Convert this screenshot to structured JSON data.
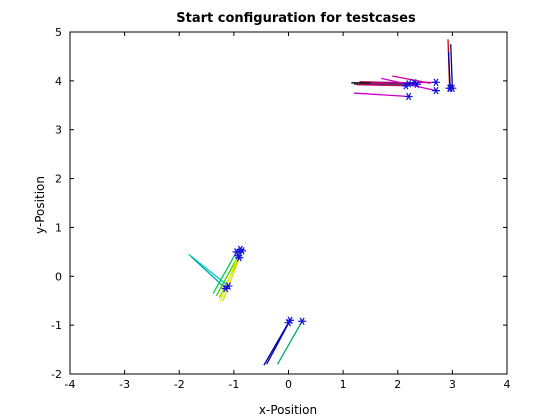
{
  "chart_data": {
    "type": "line",
    "title": "Start configuration for testcases",
    "xlabel": "x-Position",
    "ylabel": "y-Position",
    "xlim": [
      -4,
      4
    ],
    "ylim": [
      -2,
      5
    ],
    "xticks": [
      "-4",
      "-3",
      "-2",
      "-1",
      "0",
      "1",
      "2",
      "3",
      "4"
    ],
    "yticks": [
      "-2",
      "-1",
      "0",
      "1",
      "2",
      "3",
      "4",
      "5"
    ],
    "grid": false,
    "box": true,
    "marker_color": "#1010e0",
    "series": [
      {
        "color": "#cc0000",
        "points": [
          [
            2.92,
            4.85
          ],
          [
            2.95,
            3.85
          ]
        ]
      },
      {
        "color": "#00008b",
        "points": [
          [
            2.97,
            4.75
          ],
          [
            3.0,
            3.85
          ]
        ]
      },
      {
        "color": "#00008b",
        "points": [
          [
            2.93,
            4.6
          ],
          [
            2.96,
            3.85
          ]
        ]
      },
      {
        "color": "#000000",
        "points": [
          [
            1.15,
            3.96
          ],
          [
            2.2,
            3.94
          ]
        ]
      },
      {
        "color": "#333333",
        "points": [
          [
            1.2,
            3.93
          ],
          [
            2.35,
            3.93
          ]
        ]
      },
      {
        "color": "#990033",
        "points": [
          [
            1.3,
            3.98
          ],
          [
            2.3,
            3.96
          ]
        ]
      },
      {
        "color": "#cc0066",
        "points": [
          [
            1.25,
            3.92
          ],
          [
            2.15,
            3.9
          ]
        ]
      },
      {
        "color": "#cc00aa",
        "points": [
          [
            1.5,
            3.95
          ],
          [
            2.7,
            3.97
          ]
        ]
      },
      {
        "color": "#cc00cc",
        "points": [
          [
            1.2,
            3.75
          ],
          [
            2.2,
            3.68
          ]
        ]
      },
      {
        "color": "#cc00cc",
        "points": [
          [
            1.7,
            4.05
          ],
          [
            2.7,
            3.8
          ]
        ]
      },
      {
        "color": "#cc0099",
        "points": [
          [
            1.9,
            4.1
          ],
          [
            2.6,
            3.95
          ]
        ]
      },
      {
        "color": "#00cccc",
        "points": [
          [
            -1.83,
            0.45
          ],
          [
            -1.1,
            -0.2
          ]
        ]
      },
      {
        "color": "#00aaaa",
        "points": [
          [
            -1.78,
            0.4
          ],
          [
            -1.15,
            -0.25
          ]
        ]
      },
      {
        "color": "#00cc44",
        "points": [
          [
            -1.38,
            -0.35
          ],
          [
            -0.95,
            0.5
          ]
        ]
      },
      {
        "color": "#44cc00",
        "points": [
          [
            -1.32,
            -0.4
          ],
          [
            -0.92,
            0.42
          ]
        ]
      },
      {
        "color": "#88dd00",
        "points": [
          [
            -1.27,
            -0.45
          ],
          [
            -0.9,
            0.38
          ]
        ]
      },
      {
        "color": "#eeee00",
        "points": [
          [
            -1.25,
            -0.52
          ],
          [
            -0.88,
            0.55
          ]
        ]
      },
      {
        "color": "#dddd00",
        "points": [
          [
            -1.2,
            -0.5
          ],
          [
            -0.85,
            0.52
          ]
        ]
      },
      {
        "color": "#00008b",
        "points": [
          [
            -0.45,
            -1.82
          ],
          [
            0.0,
            -0.95
          ]
        ]
      },
      {
        "color": "#0000cc",
        "points": [
          [
            -0.4,
            -1.8
          ],
          [
            0.03,
            -0.9
          ]
        ]
      },
      {
        "color": "#00aa66",
        "points": [
          [
            -0.2,
            -1.8
          ],
          [
            0.25,
            -0.92
          ]
        ]
      }
    ],
    "markers": [
      [
        2.95,
        3.85
      ],
      [
        3.0,
        3.85
      ],
      [
        2.96,
        3.85
      ],
      [
        2.2,
        3.94
      ],
      [
        2.35,
        3.93
      ],
      [
        2.3,
        3.96
      ],
      [
        2.15,
        3.9
      ],
      [
        2.7,
        3.97
      ],
      [
        2.2,
        3.68
      ],
      [
        2.7,
        3.8
      ],
      [
        -1.1,
        -0.2
      ],
      [
        -1.15,
        -0.25
      ],
      [
        -0.95,
        0.5
      ],
      [
        -0.92,
        0.42
      ],
      [
        -0.9,
        0.38
      ],
      [
        -0.88,
        0.55
      ],
      [
        -0.85,
        0.52
      ],
      [
        0.0,
        -0.95
      ],
      [
        0.03,
        -0.9
      ],
      [
        0.25,
        -0.92
      ]
    ]
  }
}
